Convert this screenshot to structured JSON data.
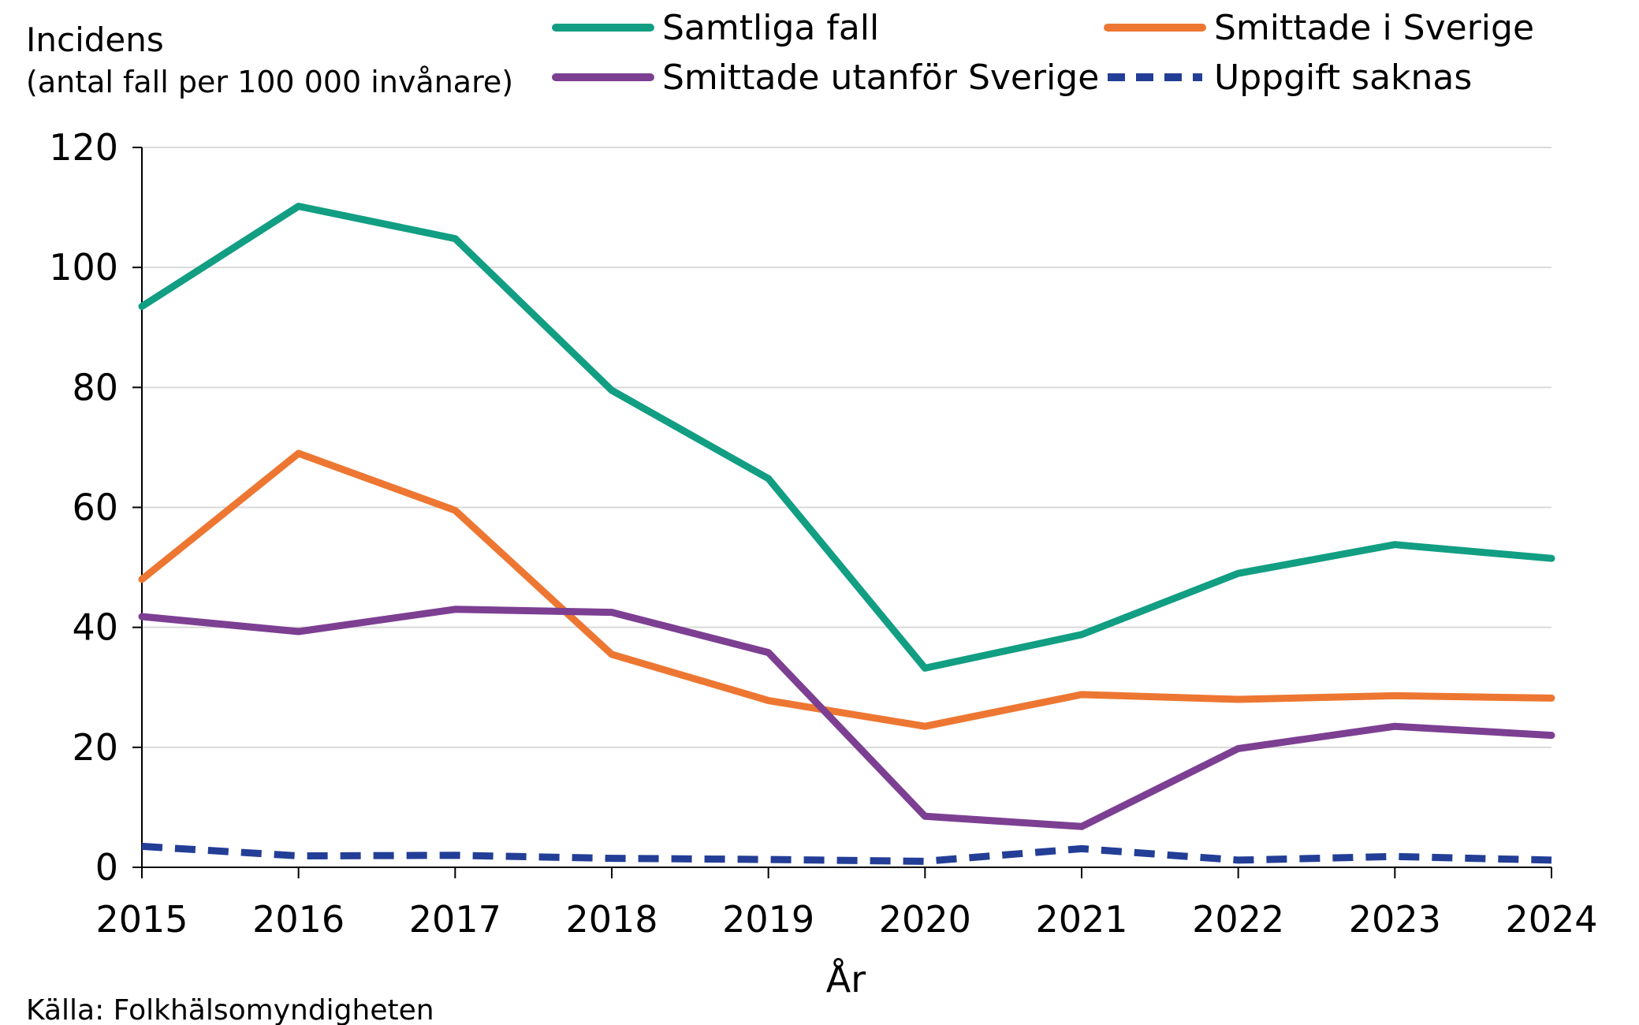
{
  "chart_data": {
    "type": "line",
    "ytitle": "Incidens",
    "ysubtitle": "(antal fall per 100 000 invånare)",
    "xlabel": "År",
    "source": "Källa: Folkhälsomyndigheten",
    "x": [
      "2015",
      "2016",
      "2017",
      "2018",
      "2019",
      "2020",
      "2021",
      "2022",
      "2023",
      "2024"
    ],
    "ylim": [
      0,
      120
    ],
    "yticks": [
      0,
      20,
      40,
      60,
      80,
      100,
      120
    ],
    "grid": true,
    "legend_position": "top",
    "series": [
      {
        "name": "Samtliga fall",
        "color": "#129e83",
        "dash": false,
        "values": [
          93.5,
          110.2,
          104.8,
          79.5,
          64.8,
          33.2,
          38.8,
          49.0,
          53.8,
          51.5
        ]
      },
      {
        "name": "Smittade i Sverige",
        "color": "#ed7732",
        "dash": false,
        "values": [
          48.0,
          69.0,
          59.5,
          35.5,
          27.8,
          23.5,
          28.8,
          28.0,
          28.6,
          28.2
        ]
      },
      {
        "name": "Smittade utanför Sverige",
        "color": "#7c3f92",
        "dash": false,
        "values": [
          41.8,
          39.3,
          43.0,
          42.5,
          35.8,
          8.5,
          6.8,
          19.8,
          23.5,
          22.0
        ]
      },
      {
        "name": "Uppgift saknas",
        "color": "#233e96",
        "dash": true,
        "values": [
          3.5,
          1.9,
          2.0,
          1.5,
          1.3,
          1.0,
          3.1,
          1.2,
          1.8,
          1.2
        ]
      }
    ]
  }
}
